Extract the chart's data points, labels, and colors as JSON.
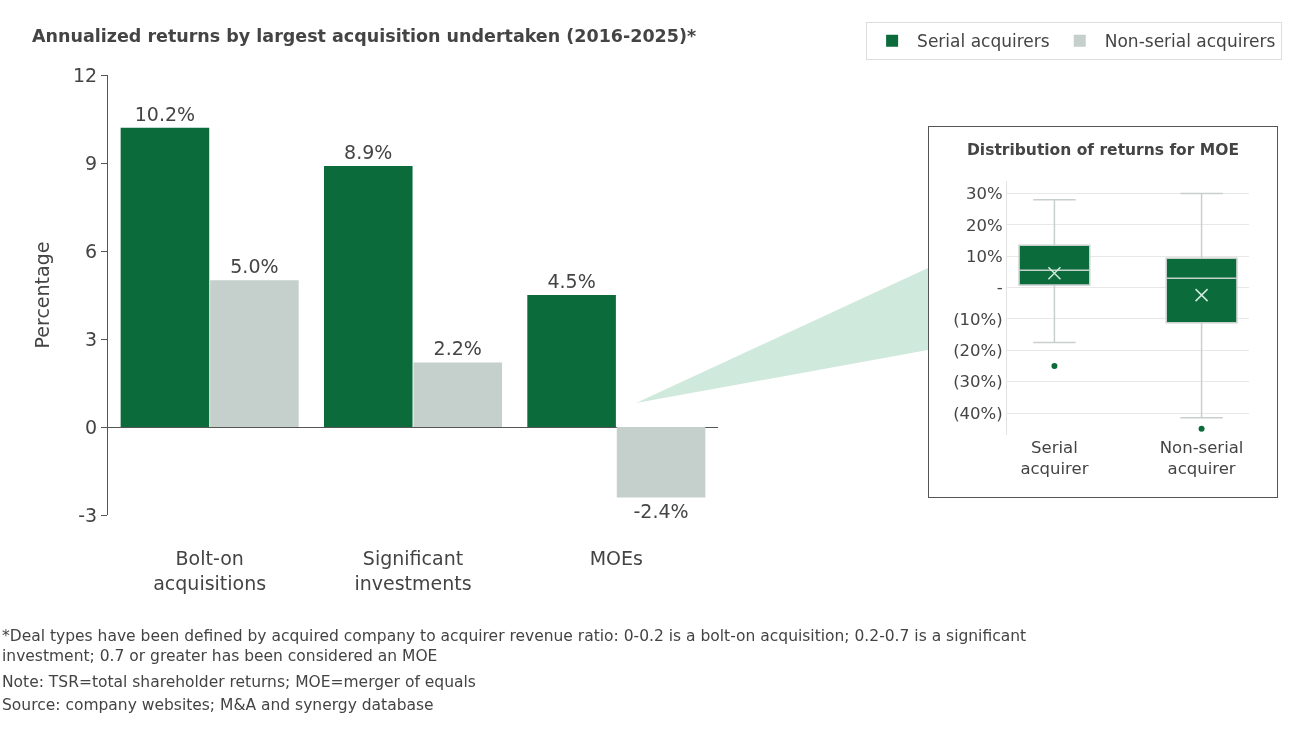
{
  "chart_data": [
    {
      "type": "bar",
      "title": "Annualized returns by largest acquisition undertaken (2016-2025)*",
      "ylabel": "Percentage",
      "categories": [
        "Bolt-on acquisitions",
        "Significant investments",
        "MOEs"
      ],
      "series": [
        {
          "name": "Serial acquirers",
          "color": "#0b6b3b",
          "values": [
            10.2,
            8.9,
            4.5
          ],
          "value_labels": [
            "10.2%",
            "8.9%",
            "4.5%"
          ]
        },
        {
          "name": "Non-serial acquirers",
          "color": "#c5cfcc",
          "values": [
            5.0,
            2.2,
            -2.4
          ],
          "value_labels": [
            "5.0%",
            "2.2%",
            "-2.4%"
          ]
        }
      ],
      "ylim": [
        -3,
        12
      ],
      "yticks": [
        -3,
        0,
        3,
        6,
        9,
        12
      ],
      "legend": "top right",
      "annotations": [
        "*Deal types have been defined by acquired company to acquirer revenue ratio: 0-0.2 is a bolt-on acquisition; 0.2-0.7 is a significant investment; 0.7 or greater has been considered an MOE",
        "Note: TSR=total shareholder returns; MOE=merger of equals",
        "Source: company websites; M&A and synergy database"
      ]
    },
    {
      "type": "box",
      "title": "Distribution of returns for MOE",
      "categories": [
        "Serial acquirer",
        "Non-serial acquirer"
      ],
      "color": "#0b6b3b",
      "boxes": [
        {
          "low": -17.5,
          "q1": 0.8,
          "median": 5.5,
          "q3": 13.5,
          "high": 28,
          "mean": 4.6,
          "outliers": [
            -25
          ]
        },
        {
          "low": -41.5,
          "q1": -11.2,
          "median": 3,
          "q3": 9.4,
          "high": 30,
          "mean": -2.4,
          "outliers": [
            -45
          ]
        }
      ],
      "ylim": [
        -47,
        34
      ],
      "yticks": [
        {
          "value": -40,
          "label": "(40%)"
        },
        {
          "value": -30,
          "label": "(30%)"
        },
        {
          "value": -20,
          "label": "(20%)"
        },
        {
          "value": -10,
          "label": "(10%)"
        },
        {
          "value": 0,
          "label": "-"
        },
        {
          "value": 10,
          "label": "10%"
        },
        {
          "value": 20,
          "label": "20%"
        },
        {
          "value": 30,
          "label": "30%"
        }
      ],
      "grid": "y"
    }
  ]
}
